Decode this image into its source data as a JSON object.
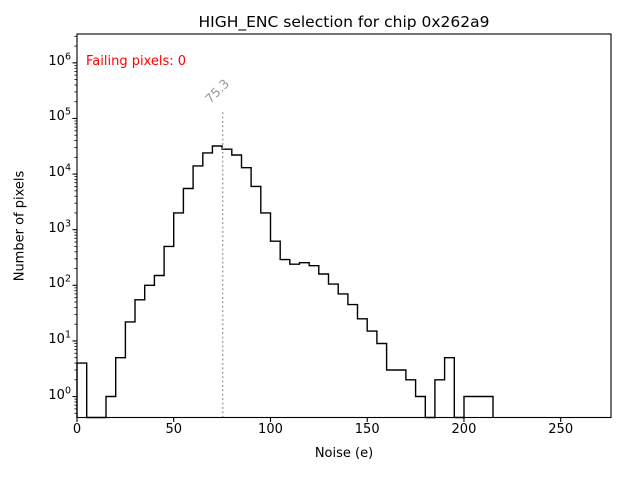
{
  "chart_data": {
    "type": "bar",
    "subtype": "histogram-step",
    "title": "HIGH_ENC selection for chip 0x262a9",
    "xlabel": "Noise (e)",
    "ylabel": "Number of pixels",
    "yscale": "log",
    "xlim": [
      0,
      276
    ],
    "ylim": [
      0.42,
      3300000
    ],
    "x_ticks": [
      0,
      50,
      100,
      150,
      200,
      250
    ],
    "y_tick_exponents": [
      0,
      1,
      2,
      3,
      4,
      5,
      6
    ],
    "grid": false,
    "legend": "none",
    "line_color": "#000000",
    "bin_width": 5,
    "bin_edges": [
      0,
      5,
      10,
      15,
      20,
      25,
      30,
      35,
      40,
      45,
      50,
      55,
      60,
      65,
      70,
      75,
      80,
      85,
      90,
      95,
      100,
      105,
      110,
      115,
      120,
      125,
      130,
      135,
      140,
      145,
      150,
      155,
      160,
      165,
      170,
      175,
      180,
      185,
      190,
      195,
      200,
      205,
      210,
      215
    ],
    "counts": [
      4,
      0,
      0,
      1,
      5,
      22,
      55,
      100,
      150,
      500,
      2000,
      5500,
      14000,
      24000,
      32000,
      28000,
      22000,
      13000,
      6000,
      2000,
      620,
      290,
      240,
      255,
      225,
      160,
      105,
      70,
      45,
      25,
      15,
      9,
      3,
      3,
      2,
      1,
      0,
      2,
      5,
      0,
      1,
      1,
      1
    ],
    "annotations": {
      "failing_pixels": {
        "text": "Failing pixels: 0",
        "color": "#ff0000"
      },
      "threshold": {
        "label": "75.3",
        "x": 75.3,
        "top_value": 130000,
        "color": "#999999",
        "line_style": "dotted"
      }
    }
  }
}
